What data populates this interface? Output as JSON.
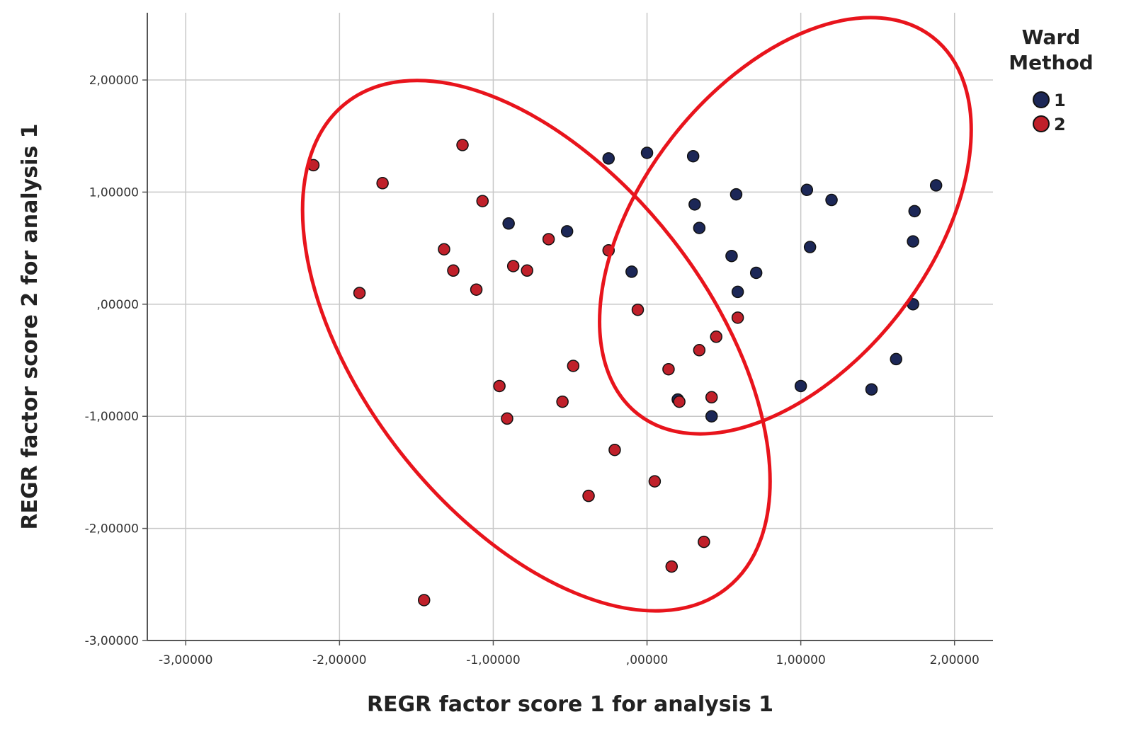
{
  "chart_data": {
    "type": "scatter",
    "title": "",
    "xlabel": "REGR factor score   1 for analysis 1",
    "ylabel": "REGR factor score   2 for analysis 1",
    "xlim": [
      -3.25,
      2.25
    ],
    "ylim": [
      -3.0,
      2.6
    ],
    "x_ticks": [
      -3,
      -2,
      -1,
      0,
      1,
      2
    ],
    "x_tick_labels": [
      "-3,00000",
      "-2,00000",
      "-1,00000",
      ",00000",
      "1,00000",
      "2,00000"
    ],
    "y_ticks": [
      -3,
      -2,
      -1,
      0,
      1,
      2
    ],
    "y_tick_labels": [
      "-3,00000",
      "-2,00000",
      "-1,00000",
      ",00000",
      "1,00000",
      "2,00000"
    ],
    "grid": true,
    "legend": {
      "title_lines": [
        "Ward",
        "Method"
      ],
      "placement": "top-right"
    },
    "series": [
      {
        "name": "1",
        "color": "#1c2757",
        "points": [
          [
            -0.25,
            1.3
          ],
          [
            0.0,
            1.35
          ],
          [
            0.3,
            1.32
          ],
          [
            0.58,
            0.98
          ],
          [
            1.04,
            1.02
          ],
          [
            1.2,
            0.93
          ],
          [
            1.88,
            1.06
          ],
          [
            1.74,
            0.83
          ],
          [
            1.73,
            0.56
          ],
          [
            0.31,
            0.89
          ],
          [
            0.34,
            0.68
          ],
          [
            -0.9,
            0.72
          ],
          [
            -0.52,
            0.65
          ],
          [
            -0.1,
            0.29
          ],
          [
            0.55,
            0.43
          ],
          [
            0.71,
            0.28
          ],
          [
            1.06,
            0.51
          ],
          [
            0.59,
            0.11
          ],
          [
            1.73,
            0.0
          ],
          [
            1.62,
            -0.49
          ],
          [
            1.0,
            -0.73
          ],
          [
            1.46,
            -0.76
          ],
          [
            0.42,
            -1.0
          ],
          [
            0.2,
            -0.85
          ]
        ]
      },
      {
        "name": "2",
        "color": "#c0202a",
        "points": [
          [
            -2.17,
            1.24
          ],
          [
            -1.72,
            1.08
          ],
          [
            -1.2,
            1.42
          ],
          [
            -1.07,
            0.92
          ],
          [
            -1.32,
            0.49
          ],
          [
            -1.26,
            0.3
          ],
          [
            -1.11,
            0.13
          ],
          [
            -1.87,
            0.1
          ],
          [
            -0.87,
            0.34
          ],
          [
            -0.78,
            0.3
          ],
          [
            -0.64,
            0.58
          ],
          [
            -0.25,
            0.48
          ],
          [
            -0.06,
            -0.05
          ],
          [
            0.59,
            -0.12
          ],
          [
            0.45,
            -0.29
          ],
          [
            0.34,
            -0.41
          ],
          [
            0.14,
            -0.58
          ],
          [
            0.42,
            -0.83
          ],
          [
            0.21,
            -0.87
          ],
          [
            -0.48,
            -0.55
          ],
          [
            -0.55,
            -0.87
          ],
          [
            -0.96,
            -0.73
          ],
          [
            -0.91,
            -1.02
          ],
          [
            -0.21,
            -1.3
          ],
          [
            0.05,
            -1.58
          ],
          [
            -0.38,
            -1.71
          ],
          [
            0.37,
            -2.12
          ],
          [
            0.16,
            -2.34
          ],
          [
            -1.45,
            -2.64
          ]
        ]
      }
    ],
    "annotations": [
      {
        "type": "ellipse",
        "color": "#e8141c",
        "center": [
          -0.72,
          -0.37
        ],
        "semi_axes": [
          1.3,
          2.32
        ],
        "tilt_deg": 38
      },
      {
        "type": "ellipse",
        "color": "#e8141c",
        "center": [
          0.9,
          0.7
        ],
        "semi_axes": [
          1.08,
          1.8
        ],
        "tilt_deg": -38
      }
    ]
  }
}
